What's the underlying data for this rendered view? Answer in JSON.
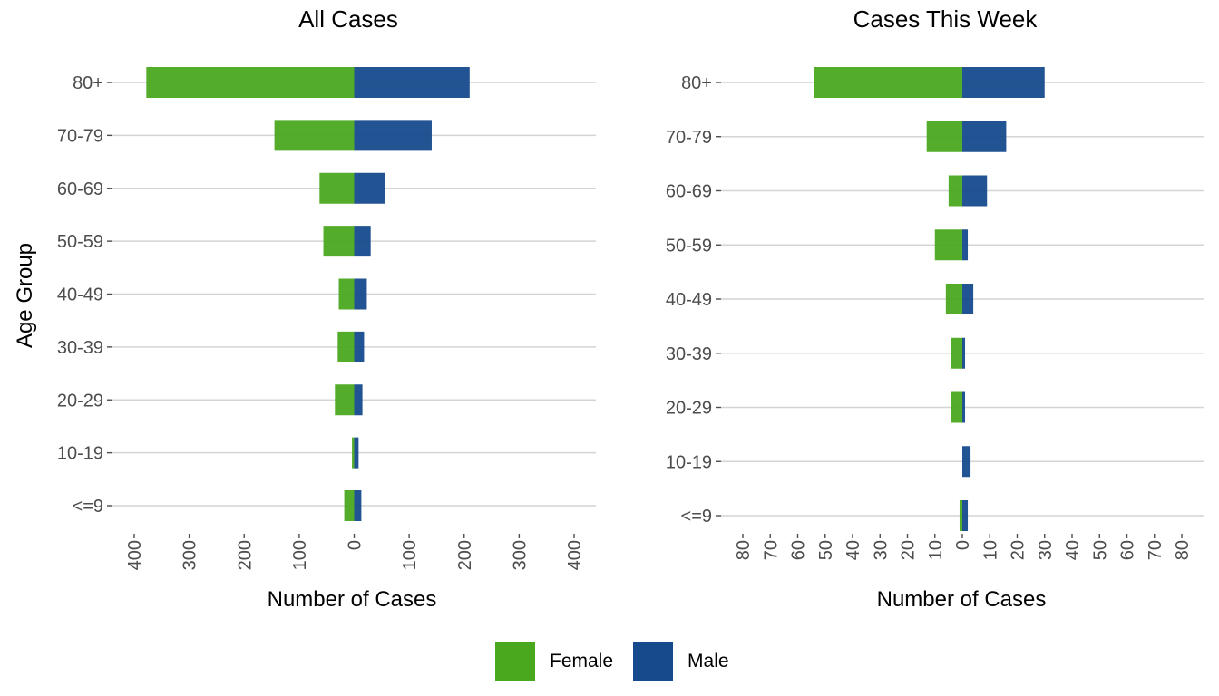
{
  "legend": {
    "items": [
      {
        "label": "Female",
        "color": "#4aa81f"
      },
      {
        "label": "Male",
        "color": "#164a8c"
      }
    ]
  },
  "ylabel": "Age Group",
  "chart_data": [
    {
      "type": "bar",
      "orientation": "horizontal",
      "title": "All Cases",
      "xlabel": "Number of Cases",
      "ylabel": "Age Group",
      "categories": [
        "<=9",
        "10-19",
        "20-29",
        "30-39",
        "40-49",
        "50-59",
        "60-69",
        "70-79",
        "80+"
      ],
      "series": [
        {
          "name": "Female",
          "values": [
            18,
            4,
            35,
            30,
            28,
            56,
            63,
            145,
            378
          ]
        },
        {
          "name": "Male",
          "values": [
            13,
            8,
            15,
            18,
            23,
            30,
            56,
            141,
            210
          ]
        }
      ],
      "xlim": [
        -400,
        400
      ],
      "xticks": [
        -400,
        -300,
        -200,
        -100,
        0,
        100,
        200,
        300,
        400
      ],
      "xtick_labels": [
        "400",
        "300",
        "200",
        "100",
        "0",
        "100",
        "200",
        "300",
        "400"
      ],
      "grid": "horizontal major gridlines"
    },
    {
      "type": "bar",
      "orientation": "horizontal",
      "title": "Cases This Week",
      "xlabel": "Number of Cases",
      "ylabel": "",
      "categories": [
        "<=9",
        "10-19",
        "20-29",
        "30-39",
        "40-49",
        "50-59",
        "60-69",
        "70-79",
        "80+"
      ],
      "series": [
        {
          "name": "Female",
          "values": [
            1,
            0,
            4,
            4,
            6,
            10,
            5,
            13,
            54
          ]
        },
        {
          "name": "Male",
          "values": [
            2,
            3,
            1,
            1,
            4,
            2,
            9,
            16,
            30
          ]
        }
      ],
      "xlim": [
        -80,
        80
      ],
      "xticks": [
        -80,
        -70,
        -60,
        -50,
        -40,
        -30,
        -20,
        -10,
        0,
        10,
        20,
        30,
        40,
        50,
        60,
        70,
        80
      ],
      "xtick_labels": [
        "80",
        "70",
        "60",
        "50",
        "40",
        "30",
        "20",
        "10",
        "0",
        "10",
        "20",
        "30",
        "40",
        "50",
        "60",
        "70",
        "80"
      ],
      "grid": "horizontal major gridlines"
    }
  ]
}
